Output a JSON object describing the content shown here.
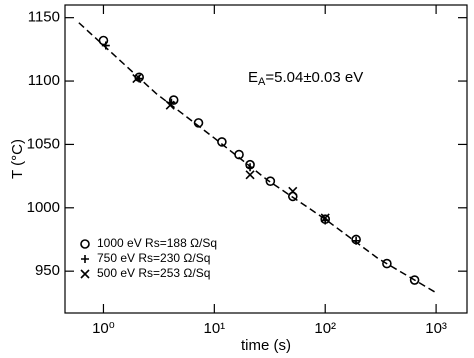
{
  "chart_data": {
    "type": "scatter",
    "x_label": "time (s)",
    "y_label": "T (°C)",
    "annotation": {
      "symbol": "E",
      "subscript": "A",
      "text": "=5.04±0.03 eV"
    },
    "xlog": true,
    "xlim": [
      0.45,
      1900
    ],
    "ylim": [
      917,
      1160
    ],
    "xticks": [
      {
        "value": 1,
        "label": "10⁰"
      },
      {
        "value": 10,
        "label": "10¹"
      },
      {
        "value": 100,
        "label": "10²"
      },
      {
        "value": 1000,
        "label": "10³"
      }
    ],
    "yticks": [
      950,
      1000,
      1050,
      1100,
      1150
    ],
    "legend": "lower left",
    "series": [
      {
        "name": "1000 eV Rs=188 Ω/Sq",
        "marker": "circle",
        "color": "#000000",
        "x": [
          1.0,
          2.1,
          4.3,
          7.2,
          11.7,
          16.7,
          21,
          32,
          51,
          100,
          190,
          360,
          640
        ],
        "values": [
          1132,
          1103,
          1085,
          1067,
          1052,
          1042,
          1034,
          1021,
          1009,
          991,
          975,
          956,
          943
        ]
      },
      {
        "name": "750 eV Rs=230 Ω/Sq",
        "marker": "plus",
        "color": "#000000",
        "x": [
          1.05,
          2.1,
          4.1,
          21,
          100,
          190
        ],
        "values": [
          1128,
          1102,
          1083,
          1032,
          990,
          974
        ]
      },
      {
        "name": "500 eV Rs=253 Ω/Sq",
        "marker": "cross",
        "color": "#000000",
        "x": [
          2.0,
          4.0,
          21,
          51,
          100
        ],
        "values": [
          1102,
          1081,
          1026,
          1013,
          992
        ]
      }
    ],
    "fit": {
      "x": [
        0.6,
        3,
        10,
        30,
        100,
        300,
        1000
      ],
      "values": [
        1146,
        1090,
        1055,
        1022,
        991,
        960,
        933
      ],
      "color": "#000000"
    }
  }
}
